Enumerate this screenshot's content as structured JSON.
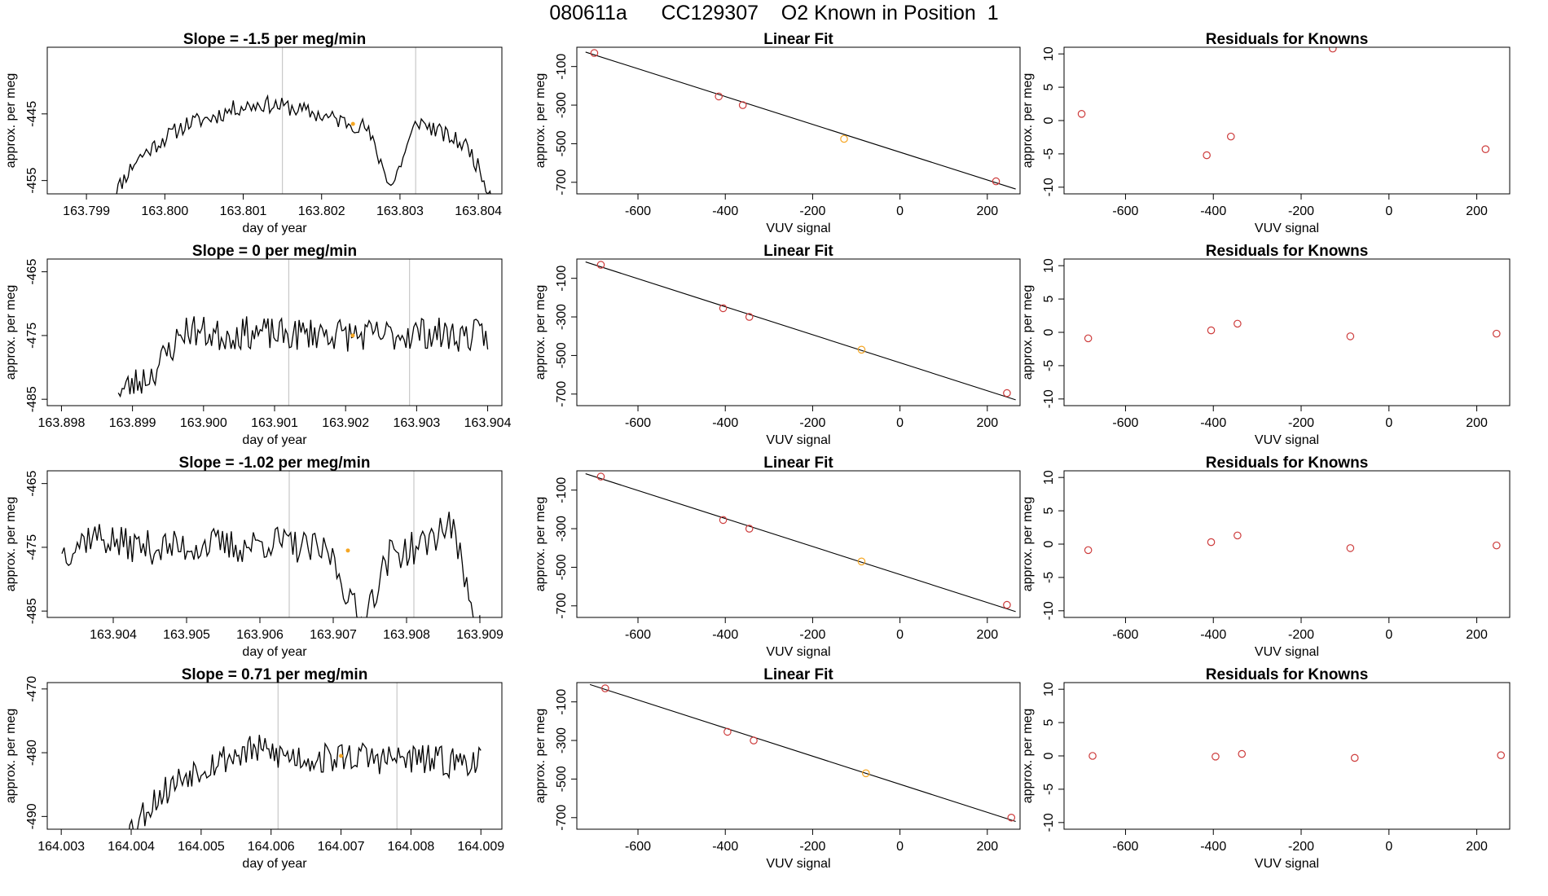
{
  "page_title": "080611a      CC129307    O2 Known in Position  1",
  "colors": {
    "line": "#000000",
    "point": "#cd3b3b",
    "highlight": "#f5a623",
    "vline": "#c8c8c8",
    "axis": "#000000"
  },
  "chart_data": [
    {
      "type": "line",
      "title": "Slope =  -1.5  per meg/min",
      "xlabel": "day of year",
      "ylabel": "approx. per meg",
      "xlim": [
        163.7985,
        163.8043
      ],
      "ylim": [
        -457,
        -435
      ],
      "xticks": [
        "163.799",
        "163.800",
        "163.801",
        "163.802",
        "163.803",
        "163.804"
      ],
      "yticks": [
        "-445",
        "-455"
      ],
      "vlines": [
        163.8015,
        163.8032
      ],
      "trace": {
        "x_start": 163.7993,
        "x_end": 163.8042,
        "seed": 11,
        "shape": [
          -458,
          -452,
          -449,
          -446.5,
          -445.5,
          -444,
          -443.5,
          -444,
          -445,
          -446,
          -447,
          -456,
          -446,
          -448,
          -450,
          -458
        ],
        "noise": 1.3
      },
      "highlight": {
        "x": 163.8024,
        "y": -446.5
      }
    },
    {
      "type": "scatter",
      "title": "Linear Fit",
      "xlabel": "VUV signal",
      "ylabel": "approx. per meg",
      "xlim": [
        -740,
        275
      ],
      "ylim": [
        -760,
        0
      ],
      "xticks": [
        -600,
        -400,
        -200,
        0,
        200
      ],
      "yticks": [
        -100,
        -300,
        -500,
        -700
      ],
      "points": [
        {
          "x": -700,
          "y": -30
        },
        {
          "x": -415,
          "y": -255
        },
        {
          "x": -360,
          "y": -300
        },
        {
          "x": -128,
          "y": -475,
          "highlight": true
        },
        {
          "x": 220,
          "y": -695
        }
      ],
      "fit_line": {
        "x0": -720,
        "y0": -25,
        "x1": 265,
        "y1": -735
      }
    },
    {
      "type": "scatter",
      "title": "Residuals for Knowns",
      "xlabel": "VUV signal",
      "ylabel": "approx. per meg",
      "xlim": [
        -740,
        275
      ],
      "ylim": [
        -11,
        11
      ],
      "xticks": [
        -600,
        -400,
        -200,
        0,
        200
      ],
      "yticks": [
        10,
        5,
        0,
        -5,
        -10
      ],
      "points": [
        {
          "x": -700,
          "y": 1.0
        },
        {
          "x": -415,
          "y": -5.2
        },
        {
          "x": -360,
          "y": -2.4
        },
        {
          "x": -128,
          "y": 10.8
        },
        {
          "x": 220,
          "y": -4.3
        }
      ]
    },
    {
      "type": "line",
      "title": "Slope =  0  per meg/min",
      "xlabel": "day of year",
      "ylabel": "approx. per meg",
      "xlim": [
        163.8978,
        163.9042
      ],
      "ylim": [
        -486,
        -463
      ],
      "xticks": [
        "163.898",
        "163.899",
        "163.900",
        "163.901",
        "163.902",
        "163.903",
        "163.904"
      ],
      "yticks": [
        "-465",
        "-475",
        "-485"
      ],
      "vlines": [
        163.9012,
        163.9029
      ],
      "trace": {
        "x_start": 163.8988,
        "x_end": 163.904,
        "seed": 23,
        "shape": [
          -484,
          -481,
          -474,
          -475,
          -474.5,
          -475,
          -474.5,
          -475,
          -475,
          -474.5,
          -475,
          -475
        ],
        "noise": 2.6
      },
      "highlight": {
        "x": 163.9021,
        "y": -475
      }
    },
    {
      "type": "scatter",
      "title": "Linear Fit",
      "xlabel": "VUV signal",
      "ylabel": "approx. per meg",
      "xlim": [
        -740,
        275
      ],
      "ylim": [
        -760,
        0
      ],
      "xticks": [
        -600,
        -400,
        -200,
        0,
        200
      ],
      "yticks": [
        -100,
        -300,
        -500,
        -700
      ],
      "points": [
        {
          "x": -685,
          "y": -30
        },
        {
          "x": -405,
          "y": -255
        },
        {
          "x": -345,
          "y": -300
        },
        {
          "x": -88,
          "y": -470,
          "highlight": true
        },
        {
          "x": 245,
          "y": -695
        }
      ],
      "fit_line": {
        "x0": -720,
        "y0": -15,
        "x1": 265,
        "y1": -730
      }
    },
    {
      "type": "scatter",
      "title": "Residuals for Knowns",
      "xlabel": "VUV signal",
      "ylabel": "approx. per meg",
      "xlim": [
        -740,
        275
      ],
      "ylim": [
        -11,
        11
      ],
      "xticks": [
        -600,
        -400,
        -200,
        0,
        200
      ],
      "yticks": [
        10,
        5,
        0,
        -5,
        -10
      ],
      "points": [
        {
          "x": -685,
          "y": -0.9
        },
        {
          "x": -405,
          "y": 0.3
        },
        {
          "x": -345,
          "y": 1.3
        },
        {
          "x": -88,
          "y": -0.6
        },
        {
          "x": 245,
          "y": -0.2
        }
      ]
    },
    {
      "type": "line",
      "title": "Slope =  -1.02  per meg/min",
      "xlabel": "day of year",
      "ylabel": "approx. per meg",
      "xlim": [
        163.9031,
        163.9093
      ],
      "ylim": [
        -486,
        -463
      ],
      "xticks": [
        "163.904",
        "163.905",
        "163.906",
        "163.907",
        "163.908",
        "163.909"
      ],
      "yticks": [
        "-465",
        "-475",
        "-485"
      ],
      "vlines": [
        163.9064,
        163.9081
      ],
      "trace": {
        "x_start": 163.9033,
        "x_end": 163.909,
        "seed": 37,
        "shape": [
          -476,
          -473,
          -474.5,
          -475,
          -475,
          -474.5,
          -475,
          -474,
          -475,
          -476,
          -487,
          -476,
          -475,
          -471,
          -488
        ],
        "noise": 2.7
      },
      "highlight": {
        "x": 163.9072,
        "y": -475.5
      }
    },
    {
      "type": "scatter",
      "title": "Linear Fit",
      "xlabel": "VUV signal",
      "ylabel": "approx. per meg",
      "xlim": [
        -740,
        275
      ],
      "ylim": [
        -760,
        0
      ],
      "xticks": [
        -600,
        -400,
        -200,
        0,
        200
      ],
      "yticks": [
        -100,
        -300,
        -500,
        -700
      ],
      "points": [
        {
          "x": -685,
          "y": -30
        },
        {
          "x": -405,
          "y": -255
        },
        {
          "x": -345,
          "y": -300
        },
        {
          "x": -88,
          "y": -470,
          "highlight": true
        },
        {
          "x": 245,
          "y": -695
        }
      ],
      "fit_line": {
        "x0": -720,
        "y0": -15,
        "x1": 265,
        "y1": -730
      }
    },
    {
      "type": "scatter",
      "title": "Residuals for Knowns",
      "xlabel": "VUV signal",
      "ylabel": "approx. per meg",
      "xlim": [
        -740,
        275
      ],
      "ylim": [
        -11,
        11
      ],
      "xticks": [
        -600,
        -400,
        -200,
        0,
        200
      ],
      "yticks": [
        10,
        5,
        0,
        -5,
        -10
      ],
      "points": [
        {
          "x": -685,
          "y": -0.9
        },
        {
          "x": -405,
          "y": 0.3
        },
        {
          "x": -345,
          "y": 1.3
        },
        {
          "x": -88,
          "y": -0.6
        },
        {
          "x": 245,
          "y": -0.2
        }
      ]
    },
    {
      "type": "line",
      "title": "Slope =  0.71  per meg/min",
      "xlabel": "day of year",
      "ylabel": "approx. per meg",
      "xlim": [
        164.0028,
        164.0093
      ],
      "ylim": [
        -492,
        -469
      ],
      "xticks": [
        "164.003",
        "164.004",
        "164.005",
        "164.006",
        "164.007",
        "164.008",
        "164.009"
      ],
      "yticks": [
        "-470",
        "-480",
        "-490"
      ],
      "vlines": [
        164.0061,
        164.0078
      ],
      "trace": {
        "x_start": 164.0039,
        "x_end": 164.009,
        "seed": 53,
        "shape": [
          -493,
          -487,
          -483,
          -481,
          -479.5,
          -480.5,
          -481,
          -480.5,
          -481,
          -481,
          -481.5,
          -481
        ],
        "noise": 2.5
      },
      "highlight": {
        "x": 164.007,
        "y": -480.5
      }
    },
    {
      "type": "scatter",
      "title": "Linear Fit",
      "xlabel": "VUV signal",
      "ylabel": "approx. per meg",
      "xlim": [
        -740,
        275
      ],
      "ylim": [
        -760,
        0
      ],
      "xticks": [
        -600,
        -400,
        -200,
        0,
        200
      ],
      "yticks": [
        -100,
        -300,
        -500,
        -700
      ],
      "points": [
        {
          "x": -675,
          "y": -30
        },
        {
          "x": -395,
          "y": -255
        },
        {
          "x": -335,
          "y": -300
        },
        {
          "x": -78,
          "y": -470,
          "highlight": true
        },
        {
          "x": 255,
          "y": -700
        }
      ],
      "fit_line": {
        "x0": -710,
        "y0": -10,
        "x1": 265,
        "y1": -720
      }
    },
    {
      "type": "scatter",
      "title": "Residuals for Knowns",
      "xlabel": "VUV signal",
      "ylabel": "approx. per meg",
      "xlim": [
        -740,
        275
      ],
      "ylim": [
        -11,
        11
      ],
      "xticks": [
        -600,
        -400,
        -200,
        0,
        200
      ],
      "yticks": [
        10,
        5,
        0,
        -5,
        -10
      ],
      "points": [
        {
          "x": -675,
          "y": 0.0
        },
        {
          "x": -395,
          "y": -0.1
        },
        {
          "x": -335,
          "y": 0.3
        },
        {
          "x": -78,
          "y": -0.3
        },
        {
          "x": 255,
          "y": 0.1
        }
      ]
    }
  ]
}
